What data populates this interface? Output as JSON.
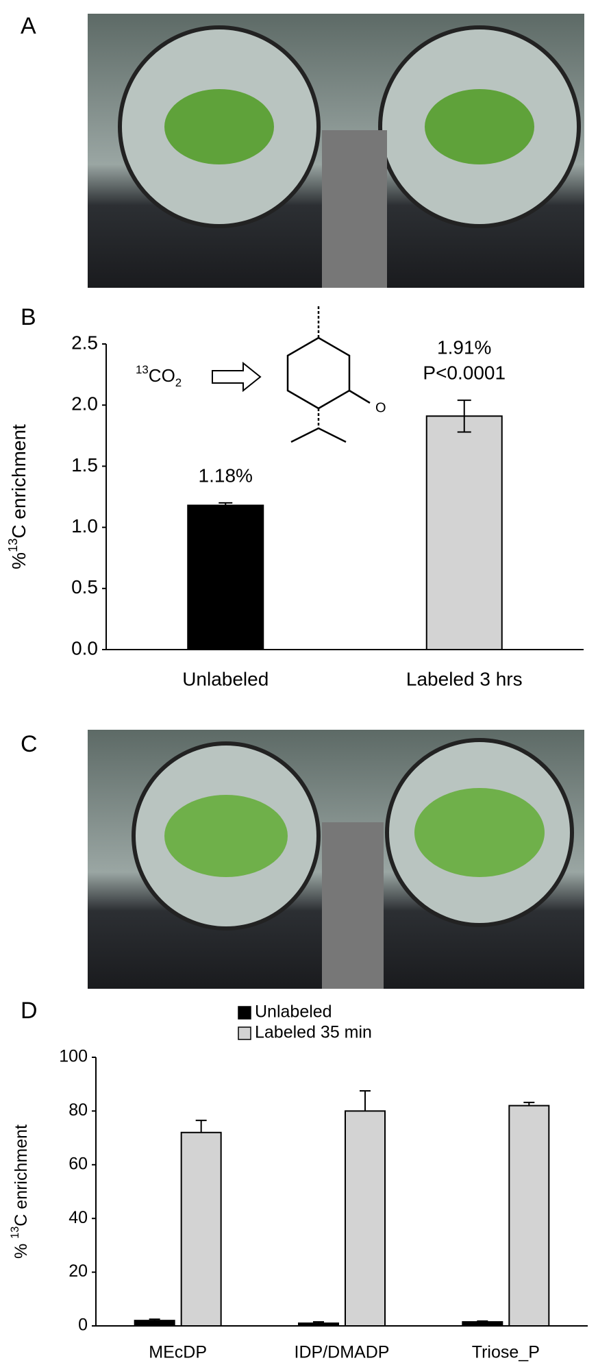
{
  "panel_labels": [
    "A",
    "B",
    "C",
    "D"
  ],
  "chart_data": [
    {
      "type": "bar",
      "ylabel_parts": [
        "%",
        "13",
        "C enrichment"
      ],
      "inset_parts": [
        "13",
        "CO",
        "2"
      ],
      "inset_atom": "O",
      "categories": [
        "Unlabeled",
        "Labeled 3 hrs"
      ],
      "values": [
        1.18,
        1.91
      ],
      "errors": [
        0.02,
        0.13
      ],
      "value_labels": [
        "1.18%",
        "1.91%"
      ],
      "annotations": [
        null,
        "P<0.0001"
      ],
      "colors": [
        "#000000",
        "#d3d3d3"
      ],
      "ylim": [
        0,
        2.5
      ],
      "yticks": [
        {
          "value": 0,
          "label": "0.0"
        },
        0.5,
        {
          "value": 1,
          "label": "1.0"
        },
        1.5,
        {
          "value": 2,
          "label": "2.0"
        },
        2.5
      ]
    },
    {
      "type": "grouped_bar",
      "ylabel_parts": [
        "% ",
        "13",
        "C enrichment"
      ],
      "categories": [
        "MEcDP",
        "IDP/DMADP",
        "Triose_P"
      ],
      "series": [
        {
          "name": "Unlabeled",
          "color": "#000000",
          "values": [
            2,
            1,
            1.5
          ],
          "errors": [
            0.5,
            0.5,
            0.3
          ]
        },
        {
          "name": "Labeled 35 min",
          "color": "#d3d3d3",
          "values": [
            72,
            80,
            82
          ],
          "errors": [
            4.5,
            7.5,
            1.2
          ]
        }
      ],
      "legend": "top",
      "ylim": [
        0,
        100
      ],
      "yticks": [
        0,
        20,
        40,
        60,
        80,
        100
      ]
    }
  ]
}
